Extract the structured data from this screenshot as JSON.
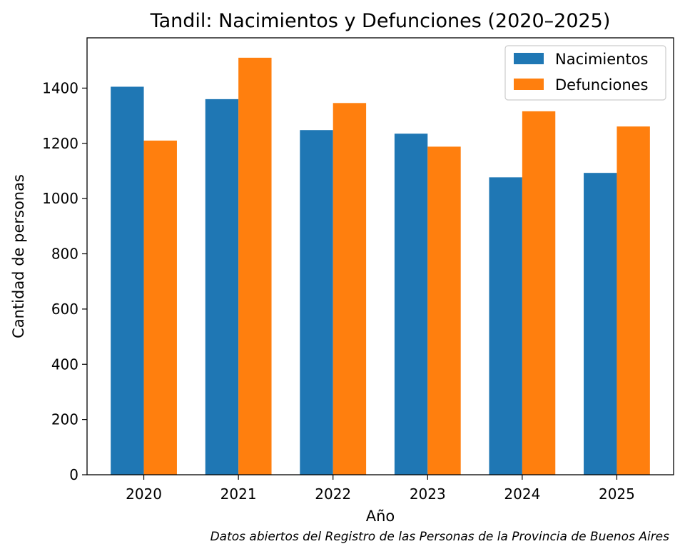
{
  "chart_data": {
    "type": "bar",
    "title": "Tandil: Nacimientos y Defunciones (2020–2025)",
    "xlabel": "Año",
    "ylabel": "Cantidad de personas",
    "categories": [
      "2020",
      "2021",
      "2022",
      "2023",
      "2024",
      "2025"
    ],
    "series": [
      {
        "name": "Nacimientos",
        "color": "#1f77b4",
        "values": [
          1405,
          1360,
          1248,
          1235,
          1077,
          1093
        ]
      },
      {
        "name": "Defunciones",
        "color": "#ff7f0e",
        "values": [
          1210,
          1510,
          1346,
          1188,
          1316,
          1261
        ]
      }
    ],
    "ylim": [
      0,
      1582
    ],
    "yticks": [
      0,
      200,
      400,
      600,
      800,
      1000,
      1200,
      1400
    ],
    "legend_position": "top-right",
    "grid": false
  },
  "source_note": "Datos abiertos del Registro de las Personas de la Provincia de Buenos Aires"
}
